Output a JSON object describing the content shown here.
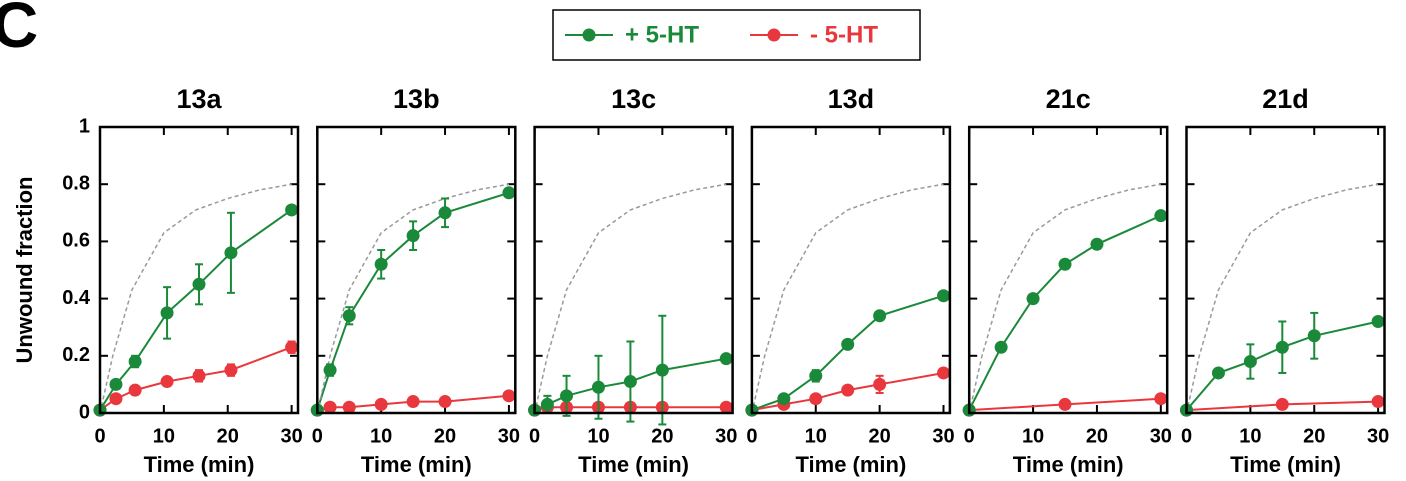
{
  "panel_label": "C",
  "chart_data": [
    {
      "type": "line",
      "title": "13a",
      "y_label": "Unwound fraction",
      "x_label": "Time (min)",
      "legend": "top-center",
      "xlim": [
        0,
        31
      ],
      "ylim": [
        0,
        1
      ],
      "xticks": [
        0,
        10,
        20,
        30
      ],
      "yticks": [
        0,
        0.2,
        0.4,
        0.6,
        0.8,
        1
      ],
      "series": [
        {
          "name": "+ 5-HT",
          "color": "#1a8a3a",
          "x": [
            0,
            2.5,
            5.5,
            10.5,
            15.5,
            20.5,
            30
          ],
          "values": [
            0.01,
            0.1,
            0.18,
            0.35,
            0.45,
            0.56,
            0.71
          ],
          "errors": [
            0,
            0.01,
            0.02,
            0.09,
            0.07,
            0.14,
            0.01
          ]
        },
        {
          "name": "- 5-HT",
          "color": "#e8383d",
          "x": [
            0,
            2.5,
            5.5,
            10.5,
            15.5,
            20.5,
            30
          ],
          "values": [
            0.01,
            0.05,
            0.08,
            0.11,
            0.13,
            0.15,
            0.23
          ],
          "errors": [
            0,
            0.01,
            0.01,
            0.01,
            0.02,
            0.02,
            0.02
          ]
        },
        {
          "color": "#999999",
          "dashed": true,
          "x": [
            0,
            2,
            5,
            10,
            15,
            20,
            25,
            30
          ],
          "values": [
            0,
            0.2,
            0.43,
            0.63,
            0.71,
            0.75,
            0.78,
            0.8
          ]
        }
      ]
    },
    {
      "type": "line",
      "title": "13b",
      "x_label": "Time (min)",
      "xlim": [
        0,
        31
      ],
      "ylim": [
        0,
        1
      ],
      "xticks": [
        0,
        10,
        20,
        30
      ],
      "yticks": [
        0,
        0.2,
        0.4,
        0.6,
        0.8,
        1
      ],
      "series": [
        {
          "color": "#1a8a3a",
          "x": [
            0,
            2,
            5,
            10,
            15,
            20,
            30
          ],
          "values": [
            0.01,
            0.15,
            0.34,
            0.52,
            0.62,
            0.7,
            0.77
          ],
          "errors": [
            0,
            0.02,
            0.03,
            0.05,
            0.05,
            0.05,
            0.01
          ]
        },
        {
          "color": "#e8383d",
          "x": [
            0,
            2,
            5,
            10,
            15,
            20,
            30
          ],
          "values": [
            0.01,
            0.02,
            0.02,
            0.03,
            0.04,
            0.04,
            0.06
          ]
        },
        {
          "color": "#999999",
          "dashed": true,
          "x": [
            0,
            2,
            5,
            10,
            15,
            20,
            25,
            30
          ],
          "values": [
            0,
            0.2,
            0.43,
            0.63,
            0.71,
            0.75,
            0.78,
            0.8
          ]
        }
      ]
    },
    {
      "type": "line",
      "title": "13c",
      "x_label": "Time (min)",
      "xlim": [
        0,
        31
      ],
      "ylim": [
        0,
        1
      ],
      "xticks": [
        0,
        10,
        20,
        30
      ],
      "yticks": [
        0,
        0.2,
        0.4,
        0.6,
        0.8,
        1
      ],
      "series": [
        {
          "color": "#1a8a3a",
          "x": [
            0,
            2,
            5,
            10,
            15,
            20,
            30
          ],
          "values": [
            0.01,
            0.03,
            0.06,
            0.09,
            0.11,
            0.15,
            0.19
          ],
          "errors": [
            0,
            0.03,
            0.07,
            0.11,
            0.14,
            0.19,
            0.01
          ]
        },
        {
          "color": "#e8383d",
          "x": [
            0,
            2,
            5,
            10,
            15,
            20,
            30
          ],
          "values": [
            0.01,
            0.02,
            0.02,
            0.02,
            0.02,
            0.02,
            0.02
          ]
        },
        {
          "color": "#999999",
          "dashed": true,
          "x": [
            0,
            2,
            5,
            10,
            15,
            20,
            25,
            30
          ],
          "values": [
            0,
            0.2,
            0.43,
            0.63,
            0.71,
            0.75,
            0.78,
            0.8
          ]
        }
      ]
    },
    {
      "type": "line",
      "title": "13d",
      "x_label": "Time (min)",
      "xlim": [
        0,
        31
      ],
      "ylim": [
        0,
        1
      ],
      "xticks": [
        0,
        10,
        20,
        30
      ],
      "yticks": [
        0,
        0.2,
        0.4,
        0.6,
        0.8,
        1
      ],
      "series": [
        {
          "color": "#1a8a3a",
          "x": [
            0,
            5,
            10,
            15,
            20,
            30
          ],
          "values": [
            0.01,
            0.05,
            0.13,
            0.24,
            0.34,
            0.41
          ],
          "errors": [
            0,
            0.01,
            0.02,
            0,
            0,
            0
          ]
        },
        {
          "color": "#e8383d",
          "x": [
            0,
            5,
            10,
            15,
            20,
            30
          ],
          "values": [
            0.01,
            0.03,
            0.05,
            0.08,
            0.1,
            0.14
          ],
          "errors": [
            0,
            0.01,
            0.01,
            0.01,
            0.03,
            0.01
          ]
        },
        {
          "color": "#999999",
          "dashed": true,
          "x": [
            0,
            2,
            5,
            10,
            15,
            20,
            25,
            30
          ],
          "values": [
            0,
            0.2,
            0.43,
            0.63,
            0.71,
            0.75,
            0.78,
            0.8
          ]
        }
      ]
    },
    {
      "type": "line",
      "title": "21c",
      "x_label": "Time (min)",
      "xlim": [
        0,
        31
      ],
      "ylim": [
        0,
        1
      ],
      "xticks": [
        0,
        10,
        20,
        30
      ],
      "yticks": [
        0,
        0.2,
        0.4,
        0.6,
        0.8,
        1
      ],
      "series": [
        {
          "color": "#1a8a3a",
          "x": [
            0,
            5,
            10,
            15,
            20,
            30
          ],
          "values": [
            0.01,
            0.23,
            0.4,
            0.52,
            0.59,
            0.69
          ]
        },
        {
          "color": "#e8383d",
          "x": [
            0,
            15,
            30
          ],
          "values": [
            0.01,
            0.03,
            0.05
          ]
        },
        {
          "color": "#999999",
          "dashed": true,
          "x": [
            0,
            2,
            5,
            10,
            15,
            20,
            25,
            30
          ],
          "values": [
            0,
            0.2,
            0.43,
            0.63,
            0.71,
            0.75,
            0.78,
            0.8
          ]
        }
      ]
    },
    {
      "type": "line",
      "title": "21d",
      "x_label": "Time (min)",
      "xlim": [
        0,
        31
      ],
      "ylim": [
        0,
        1
      ],
      "xticks": [
        0,
        10,
        20,
        30
      ],
      "yticks": [
        0,
        0.2,
        0.4,
        0.6,
        0.8,
        1
      ],
      "series": [
        {
          "color": "#1a8a3a",
          "x": [
            0,
            5,
            10,
            15,
            20,
            30
          ],
          "values": [
            0.01,
            0.14,
            0.18,
            0.23,
            0.27,
            0.32
          ],
          "errors": [
            0,
            0.01,
            0.06,
            0.09,
            0.08,
            0.01
          ]
        },
        {
          "color": "#e8383d",
          "x": [
            0,
            15,
            30
          ],
          "values": [
            0.01,
            0.03,
            0.04
          ]
        },
        {
          "color": "#999999",
          "dashed": true,
          "x": [
            0,
            2,
            5,
            10,
            15,
            20,
            25,
            30
          ],
          "values": [
            0,
            0.2,
            0.43,
            0.63,
            0.71,
            0.75,
            0.78,
            0.8
          ]
        }
      ]
    }
  ]
}
